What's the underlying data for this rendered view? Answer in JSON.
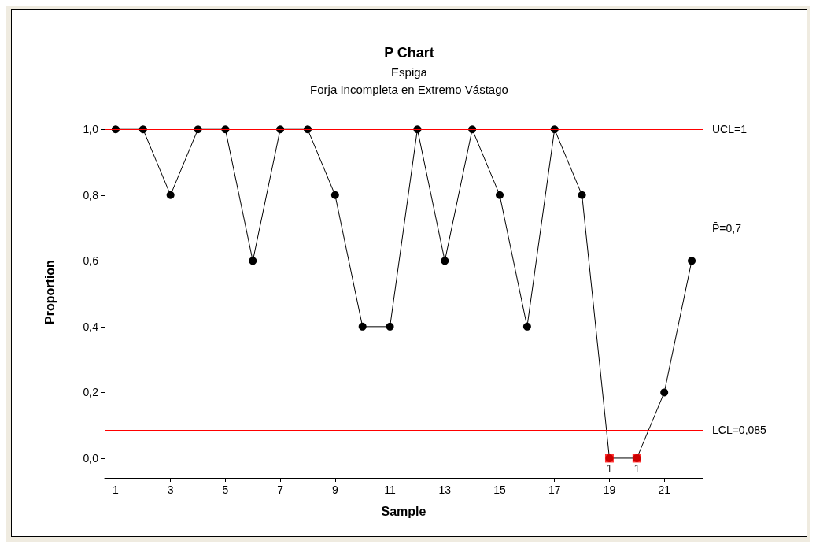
{
  "chart_data": {
    "type": "line",
    "title": "P Chart",
    "subtitle": "Espiga\nForja Incompleta en Extremo Vástago",
    "xlabel": "Sample",
    "ylabel": "Proportion",
    "x": [
      1,
      2,
      3,
      4,
      5,
      6,
      7,
      8,
      9,
      10,
      11,
      12,
      13,
      14,
      15,
      16,
      17,
      18,
      19,
      20,
      21,
      22
    ],
    "series": [
      {
        "color": "#000000",
        "marker": "circle",
        "values": [
          1,
          1,
          0.8,
          1,
          1,
          0.6,
          1,
          1,
          0.8,
          0.4,
          0.4,
          1,
          0.6,
          1,
          0.8,
          0.4,
          1,
          0.8,
          0,
          0,
          0.2,
          0.6
        ]
      },
      {
        "type": "scatter",
        "color": "#ff0000",
        "marker": "square",
        "x": [
          19,
          20
        ],
        "values": [
          0,
          0
        ]
      }
    ],
    "ref_lines": [
      {
        "axis": "y",
        "value": 1,
        "label": "UCL=1",
        "color": "#ff0000"
      },
      {
        "axis": "y",
        "value": 0.7,
        "label": "P̄=0,7",
        "color": "#00ee00"
      },
      {
        "axis": "y",
        "value": 0.085,
        "label": "LCL=0,085",
        "color": "#ff0000"
      }
    ],
    "annotations": [
      {
        "text": "1",
        "x": 19,
        "y": 0
      },
      {
        "text": "1",
        "x": 20,
        "y": 0
      }
    ],
    "xlim": [
      0.6,
      22.4
    ],
    "xticks": [
      1,
      3,
      5,
      7,
      9,
      11,
      13,
      15,
      17,
      19,
      21
    ],
    "ylim": [
      -0.06,
      1.07
    ],
    "yticks": [
      {
        "value": 0,
        "label": "0,0"
      },
      {
        "value": 0.2,
        "label": "0,2"
      },
      {
        "value": 0.4,
        "label": "0,4"
      },
      {
        "value": 0.6,
        "label": "0,6"
      },
      {
        "value": 0.8,
        "label": "0,8"
      },
      {
        "value": 1,
        "label": "1,0"
      }
    ],
    "grid": false,
    "line_style": "solid"
  }
}
